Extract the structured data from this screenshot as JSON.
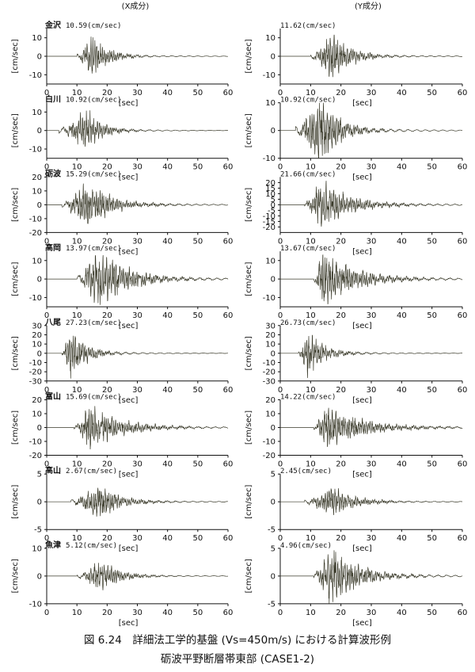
{
  "figure": {
    "col_headers": [
      "(X成分)",
      "(Y成分)"
    ],
    "caption_line1": "図 6.24　詳細法工学的基盤 (Vs=450m/s) における計算波形例",
    "caption_line2": "砺波平野断層帯東部 (CASE1-2)",
    "colors": {
      "trace": "#3a3a2a",
      "axis": "#111111"
    }
  },
  "chart_data": [
    {
      "type": "line",
      "station": "金沢",
      "component": "X",
      "peak_label": "10.59(cm/sec)",
      "ylabel": "[cm/sec]",
      "xlabel": "[sec]",
      "xlim": [
        0,
        60
      ],
      "ylim": [
        -15,
        15
      ],
      "yticks": [
        -10,
        0,
        10
      ],
      "xticks": [
        0,
        10,
        20,
        30,
        40,
        50,
        60
      ],
      "peak": 10.59,
      "onset_s": 10,
      "peak_time_s": 15,
      "decay_s": 5,
      "seed": 11
    },
    {
      "type": "line",
      "station": "",
      "component": "Y",
      "peak_label": "11.62(cm/sec)",
      "ylabel": "[cm/sec]",
      "xlabel": "[sec]",
      "xlim": [
        0,
        60
      ],
      "ylim": [
        -15,
        15
      ],
      "yticks": [
        -10,
        0,
        10
      ],
      "xticks": [
        0,
        10,
        20,
        30,
        40,
        50,
        60
      ],
      "peak": 11.62,
      "onset_s": 10,
      "peak_time_s": 17,
      "decay_s": 6,
      "seed": 12
    },
    {
      "type": "line",
      "station": "白川",
      "component": "X",
      "peak_label": "10.92(cm/sec)",
      "ylabel": "[cm/sec]",
      "xlabel": "[sec]",
      "xlim": [
        0,
        60
      ],
      "ylim": [
        -15,
        15
      ],
      "yticks": [
        -10,
        0,
        10
      ],
      "xticks": [
        0,
        10,
        20,
        30,
        40,
        50,
        60
      ],
      "peak": 10.92,
      "onset_s": 4,
      "peak_time_s": 13,
      "decay_s": 5,
      "seed": 21
    },
    {
      "type": "line",
      "station": "",
      "component": "Y",
      "peak_label": "10.92(cm/sec)",
      "ylabel": "[cm/sec]",
      "xlabel": "[sec]",
      "xlim": [
        0,
        60
      ],
      "ylim": [
        -10,
        10
      ],
      "yticks": [
        -10,
        0,
        10
      ],
      "xticks": [
        0,
        10,
        20,
        30,
        40,
        50,
        60
      ],
      "peak": 10.92,
      "onset_s": 5,
      "peak_time_s": 13,
      "decay_s": 6,
      "seed": 22
    },
    {
      "type": "line",
      "station": "砺波",
      "component": "X",
      "peak_label": "15.29(cm/sec)",
      "ylabel": "[cm/sec]",
      "xlabel": "[sec]",
      "xlim": [
        0,
        60
      ],
      "ylim": [
        -20,
        20
      ],
      "yticks": [
        -20,
        -10,
        0,
        10,
        20
      ],
      "xticks": [
        0,
        10,
        20,
        30,
        40,
        50,
        60
      ],
      "peak": 15.29,
      "onset_s": 5,
      "peak_time_s": 13,
      "decay_s": 8,
      "seed": 31
    },
    {
      "type": "line",
      "station": "",
      "component": "Y",
      "peak_label": "21.66(cm/sec)",
      "ylabel": "[cm/sec]",
      "xlabel": "[sec]",
      "xlim": [
        0,
        60
      ],
      "ylim": [
        -25,
        25
      ],
      "yticks": [
        -20,
        -15,
        -10,
        -5,
        0,
        5,
        10,
        15,
        20
      ],
      "xticks": [
        0,
        10,
        20,
        30,
        40,
        50,
        60
      ],
      "peak": 21.66,
      "onset_s": 8,
      "peak_time_s": 13,
      "decay_s": 9,
      "seed": 32
    },
    {
      "type": "line",
      "station": "高岡",
      "component": "X",
      "peak_label": "13.97(cm/sec)",
      "ylabel": "[cm/sec]",
      "xlabel": "[sec]",
      "xlim": [
        0,
        60
      ],
      "ylim": [
        -15,
        15
      ],
      "yticks": [
        -10,
        0,
        10
      ],
      "xticks": [
        0,
        10,
        20,
        30,
        40,
        50,
        60
      ],
      "peak": 13.97,
      "onset_s": 10,
      "peak_time_s": 17,
      "decay_s": 9,
      "seed": 41
    },
    {
      "type": "line",
      "station": "",
      "component": "Y",
      "peak_label": "13.67(cm/sec)",
      "ylabel": "[cm/sec]",
      "xlabel": "[sec]",
      "xlim": [
        0,
        60
      ],
      "ylim": [
        -15,
        15
      ],
      "yticks": [
        -10,
        0,
        10
      ],
      "xticks": [
        0,
        10,
        20,
        30,
        40,
        50,
        60
      ],
      "peak": 13.67,
      "onset_s": 11,
      "peak_time_s": 14,
      "decay_s": 10,
      "seed": 42
    },
    {
      "type": "line",
      "station": "八尾",
      "component": "X",
      "peak_label": "27.23(cm/sec)",
      "ylabel": "[cm/sec]",
      "xlabel": "[sec]",
      "xlim": [
        0,
        60
      ],
      "ylim": [
        -30,
        30
      ],
      "yticks": [
        -30,
        -20,
        -10,
        0,
        10,
        20,
        30
      ],
      "xticks": [
        0,
        10,
        20,
        30,
        40,
        50,
        60
      ],
      "peak": 27.23,
      "onset_s": 5,
      "peak_time_s": 8,
      "decay_s": 5,
      "seed": 51
    },
    {
      "type": "line",
      "station": "",
      "component": "Y",
      "peak_label": "26.73(cm/sec)",
      "ylabel": "[cm/sec]",
      "xlabel": "[sec]",
      "xlim": [
        0,
        60
      ],
      "ylim": [
        -30,
        30
      ],
      "yticks": [
        -30,
        -20,
        -10,
        0,
        10,
        20,
        30
      ],
      "xticks": [
        0,
        10,
        20,
        30,
        40,
        50,
        60
      ],
      "peak": 26.73,
      "onset_s": 6,
      "peak_time_s": 9,
      "decay_s": 5,
      "seed": 52
    },
    {
      "type": "line",
      "station": "富山",
      "component": "X",
      "peak_label": "15.69(cm/sec)",
      "ylabel": "[cm/sec]",
      "xlabel": "[sec]",
      "xlim": [
        0,
        60
      ],
      "ylim": [
        -20,
        20
      ],
      "yticks": [
        -20,
        -10,
        0,
        10,
        20
      ],
      "xticks": [
        0,
        10,
        20,
        30,
        40,
        50,
        60
      ],
      "peak": 15.69,
      "onset_s": 9,
      "peak_time_s": 14,
      "decay_s": 10,
      "seed": 61
    },
    {
      "type": "line",
      "station": "",
      "component": "Y",
      "peak_label": "14.22(cm/sec)",
      "ylabel": "[cm/sec]",
      "xlabel": "[sec]",
      "xlim": [
        0,
        60
      ],
      "ylim": [
        -20,
        20
      ],
      "yticks": [
        -20,
        -10,
        0,
        10,
        20
      ],
      "xticks": [
        0,
        10,
        20,
        30,
        40,
        50,
        60
      ],
      "peak": 14.22,
      "onset_s": 11,
      "peak_time_s": 15,
      "decay_s": 12,
      "seed": 62
    },
    {
      "type": "line",
      "station": "高山",
      "component": "X",
      "peak_label": "2.67(cm/sec)",
      "ylabel": "[cm/sec]",
      "xlabel": "[sec]",
      "xlim": [
        0,
        60
      ],
      "ylim": [
        -5,
        5
      ],
      "yticks": [
        -5,
        0,
        5
      ],
      "xticks": [
        0,
        10,
        20,
        30,
        40,
        50,
        60
      ],
      "peak": 2.67,
      "onset_s": 8,
      "peak_time_s": 17,
      "decay_s": 7,
      "seed": 71
    },
    {
      "type": "line",
      "station": "",
      "component": "Y",
      "peak_label": "2.45(cm/sec)",
      "ylabel": "[cm/sec]",
      "xlabel": "[sec]",
      "xlim": [
        0,
        60
      ],
      "ylim": [
        -5,
        5
      ],
      "yticks": [
        -5,
        0,
        5
      ],
      "xticks": [
        0,
        10,
        20,
        30,
        40,
        50,
        60
      ],
      "peak": 2.45,
      "onset_s": 8,
      "peak_time_s": 17,
      "decay_s": 7,
      "seed": 72
    },
    {
      "type": "line",
      "station": "魚津",
      "component": "X",
      "peak_label": "5.12(cm/sec)",
      "ylabel": "[cm/sec]",
      "xlabel": "[sec]",
      "xlim": [
        0,
        60
      ],
      "ylim": [
        -10,
        10
      ],
      "yticks": [
        -10,
        0,
        10
      ],
      "xticks": [
        0,
        10,
        20,
        30,
        40,
        50,
        60
      ],
      "peak": 5.12,
      "onset_s": 10,
      "peak_time_s": 18,
      "decay_s": 6,
      "seed": 81
    },
    {
      "type": "line",
      "station": "",
      "component": "Y",
      "peak_label": "4.96(cm/sec)",
      "ylabel": "[cm/sec]",
      "xlabel": "[sec]",
      "xlim": [
        0,
        60
      ],
      "ylim": [
        -5,
        5
      ],
      "yticks": [
        -5,
        0,
        5
      ],
      "xticks": [
        0,
        10,
        20,
        30,
        40,
        50,
        60
      ],
      "peak": 4.96,
      "onset_s": 11,
      "peak_time_s": 17,
      "decay_s": 8,
      "seed": 82
    }
  ]
}
